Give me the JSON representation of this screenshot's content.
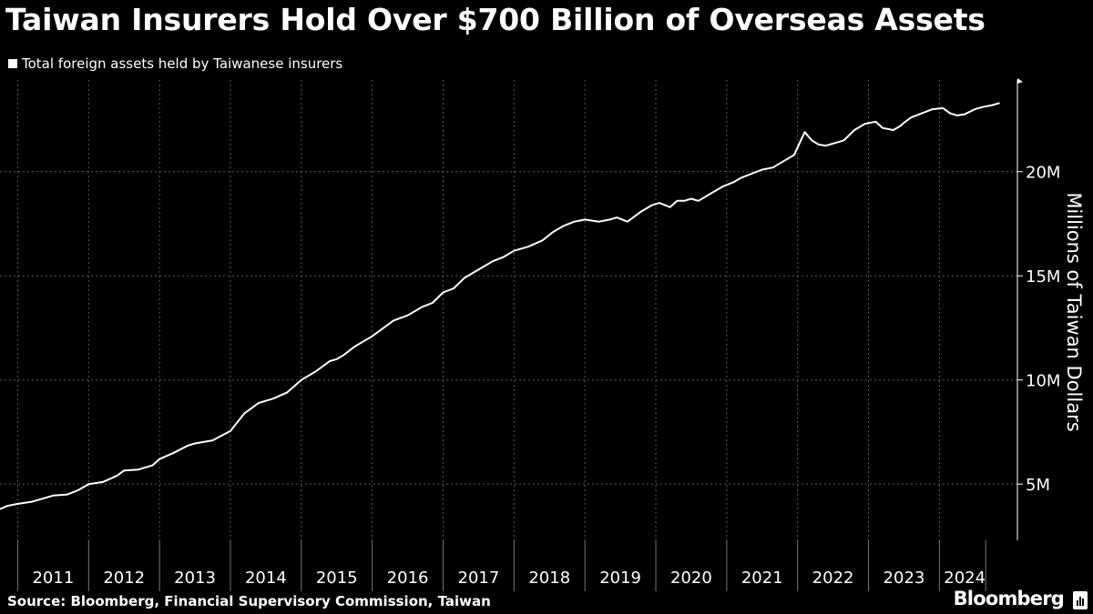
{
  "title": "Taiwan Insurers Hold Over $700 Billion of Overseas Assets",
  "source": "Source: Bloomberg, Financial Supervisory Commission, Taiwan",
  "brand": "Bloomberg",
  "colors": {
    "background": "#000000",
    "line": "#ffffff",
    "grid": "#5a5a5a",
    "text": "#ffffff"
  },
  "chart_data": {
    "type": "line",
    "title": "Taiwan Insurers Hold Over $700 Billion of Overseas Assets",
    "xlabel": "",
    "ylabel": "Millions of Taiwan Dollars",
    "legend_position": "top-left",
    "grid": true,
    "x_unit": "year",
    "xlim": [
      2010.75,
      2025.1
    ],
    "ylim": [
      2300000,
      24400000
    ],
    "x_tick_labels": [
      "2011",
      "2012",
      "2013",
      "2014",
      "2015",
      "2016",
      "2017",
      "2018",
      "2019",
      "2020",
      "2021",
      "2022",
      "2023",
      "2024"
    ],
    "y_ticks": [
      5000000,
      10000000,
      15000000,
      20000000
    ],
    "y_tick_labels": [
      "5M",
      "10M",
      "15M",
      "20M"
    ],
    "series": [
      {
        "name": "Total foreign assets held by Taiwanese insurers",
        "x": [
          2010.75,
          2010.85,
          2011.0,
          2011.2,
          2011.4,
          2011.5,
          2011.7,
          2011.85,
          2012.0,
          2012.2,
          2012.4,
          2012.5,
          2012.7,
          2012.9,
          2013.0,
          2013.2,
          2013.4,
          2013.5,
          2013.75,
          2014.0,
          2014.2,
          2014.4,
          2014.6,
          2014.8,
          2015.0,
          2015.2,
          2015.4,
          2015.5,
          2015.6,
          2015.75,
          2015.9,
          2016.0,
          2016.2,
          2016.3,
          2016.5,
          2016.7,
          2016.85,
          2017.0,
          2017.15,
          2017.3,
          2017.5,
          2017.7,
          2017.85,
          2018.0,
          2018.2,
          2018.4,
          2018.55,
          2018.7,
          2018.85,
          2019.0,
          2019.2,
          2019.35,
          2019.45,
          2019.6,
          2019.8,
          2019.95,
          2020.05,
          2020.2,
          2020.3,
          2020.4,
          2020.5,
          2020.6,
          2020.8,
          2020.95,
          2021.1,
          2021.2,
          2021.35,
          2021.5,
          2021.65,
          2021.8,
          2021.95,
          2022.1,
          2022.2,
          2022.3,
          2022.4,
          2022.45,
          2022.55,
          2022.65,
          2022.8,
          2022.95,
          2023.1,
          2023.2,
          2023.35,
          2023.45,
          2023.5,
          2023.6,
          2023.75,
          2023.9,
          2024.05,
          2024.15,
          2024.25,
          2024.35,
          2024.5,
          2024.6,
          2024.75,
          2024.85
        ],
        "values": [
          3800000,
          3950000,
          4050000,
          4150000,
          4350000,
          4450000,
          4500000,
          4700000,
          5000000,
          5100000,
          5400000,
          5650000,
          5700000,
          5900000,
          6200000,
          6500000,
          6850000,
          6950000,
          7100000,
          7550000,
          8400000,
          8900000,
          9100000,
          9400000,
          10000000,
          10400000,
          10900000,
          11000000,
          11200000,
          11600000,
          11900000,
          12100000,
          12600000,
          12850000,
          13100000,
          13500000,
          13700000,
          14200000,
          14400000,
          14900000,
          15300000,
          15700000,
          15900000,
          16200000,
          16400000,
          16700000,
          17100000,
          17400000,
          17600000,
          17700000,
          17600000,
          17700000,
          17800000,
          17600000,
          18100000,
          18400000,
          18500000,
          18300000,
          18600000,
          18600000,
          18700000,
          18600000,
          19000000,
          19300000,
          19500000,
          19700000,
          19900000,
          20100000,
          20200000,
          20500000,
          20800000,
          21900000,
          21500000,
          21300000,
          21250000,
          21300000,
          21400000,
          21500000,
          22000000,
          22300000,
          22400000,
          22100000,
          22000000,
          22200000,
          22350000,
          22600000,
          22800000,
          23000000,
          23050000,
          22800000,
          22700000,
          22750000,
          23000000,
          23100000,
          23200000,
          23300000
        ]
      }
    ]
  }
}
